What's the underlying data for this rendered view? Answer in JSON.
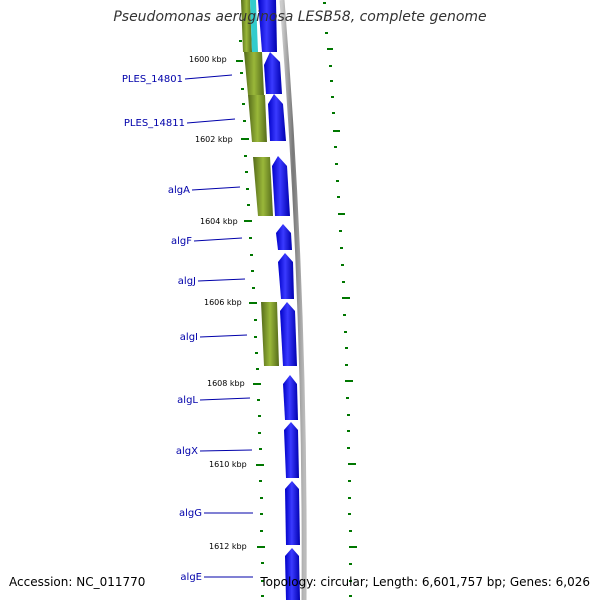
{
  "title": "Pseudomonas aeruginosa LESB58, complete genome",
  "accession": "Accession: NC_011770",
  "topology": "Topology: circular; Length: 6,601,757 bp; Genes: 6,026",
  "kbp_ticks": [
    {
      "label": "1600 kbp"
    },
    {
      "label": "1602 kbp"
    },
    {
      "label": "1604 kbp"
    },
    {
      "label": "1606 kbp"
    },
    {
      "label": "1608 kbp"
    },
    {
      "label": "1610 kbp"
    },
    {
      "label": "1612 kbp"
    }
  ],
  "genes": [
    {
      "name": "PLES_14801"
    },
    {
      "name": "PLES_14811"
    },
    {
      "name": "algA"
    },
    {
      "name": "algF"
    },
    {
      "name": "algJ"
    },
    {
      "name": "algI"
    },
    {
      "name": "algL"
    },
    {
      "name": "algX"
    },
    {
      "name": "algG"
    },
    {
      "name": "algE"
    }
  ],
  "colors": {
    "cds_fill": "#0000ee",
    "orthologue_fill": "#6b8e23",
    "backbone": "#999999",
    "tick": "#007700",
    "label": "#0000aa",
    "highlight": "#33cccc"
  }
}
